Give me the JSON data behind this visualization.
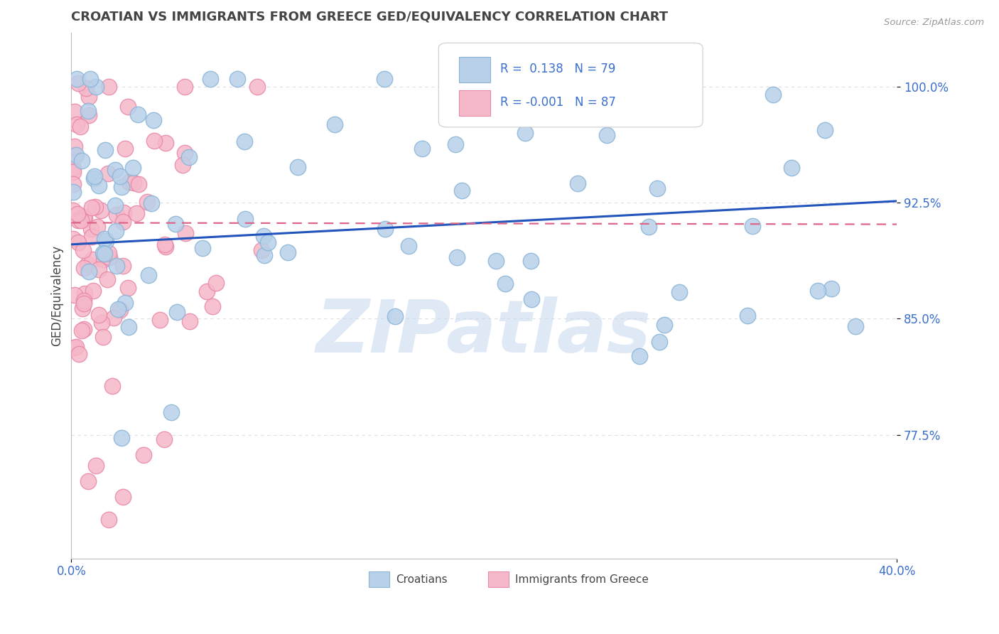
{
  "title": "CROATIAN VS IMMIGRANTS FROM GREECE GED/EQUIVALENCY CORRELATION CHART",
  "source_text": "Source: ZipAtlas.com",
  "ylabel": "GED/Equivalency",
  "xlim": [
    0.0,
    0.4
  ],
  "ylim": [
    0.695,
    1.035
  ],
  "yticks": [
    0.775,
    0.85,
    0.925,
    1.0
  ],
  "ytick_labels": [
    "77.5%",
    "85.0%",
    "92.5%",
    "100.0%"
  ],
  "xticks": [
    0.0,
    0.4
  ],
  "xtick_labels": [
    "0.0%",
    "40.0%"
  ],
  "legend_r_blue": "0.138",
  "legend_n_blue": "79",
  "legend_r_pink": "-0.001",
  "legend_n_pink": "87",
  "legend_label_blue": "Croatians",
  "legend_label_pink": "Immigrants from Greece",
  "dot_color_blue": "#b8d0e8",
  "dot_edge_blue": "#8ab4d8",
  "dot_color_pink": "#f5b8c8",
  "dot_edge_pink": "#e888a8",
  "line_color_blue": "#2255bb",
  "line_color_pink": "#dd6688",
  "watermark": "ZIPatlas",
  "watermark_color": "#c5d8ee",
  "background_color": "#ffffff",
  "title_color": "#444444",
  "axis_color": "#444444",
  "grid_color": "#dddddd",
  "blue_r": 0.138,
  "pink_r": -0.001,
  "blue_intercept": 0.898,
  "blue_slope_total": 0.028,
  "pink_intercept": 0.912,
  "pink_slope_total": -0.001
}
